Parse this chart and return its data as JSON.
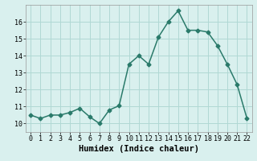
{
  "title": "",
  "xlabel": "Humidex (Indice chaleur)",
  "ylabel": "",
  "x": [
    0,
    1,
    2,
    3,
    4,
    5,
    6,
    7,
    8,
    9,
    10,
    11,
    12,
    13,
    14,
    15,
    16,
    17,
    18,
    19,
    20,
    21,
    22
  ],
  "y": [
    10.5,
    10.3,
    10.5,
    10.5,
    10.65,
    10.9,
    10.4,
    10.0,
    10.8,
    11.05,
    13.5,
    14.0,
    13.5,
    15.1,
    16.0,
    16.65,
    15.5,
    15.5,
    15.4,
    14.6,
    13.5,
    12.3,
    10.3
  ],
  "line_color": "#2a7a6a",
  "marker": "D",
  "marker_size": 2.5,
  "line_width": 1.1,
  "bg_color": "#d9f0ee",
  "grid_color": "#b0d8d4",
  "ylim": [
    9.5,
    17.0
  ],
  "yticks": [
    10,
    11,
    12,
    13,
    14,
    15,
    16
  ],
  "xlim": [
    -0.5,
    22.5
  ],
  "xticks": [
    0,
    1,
    2,
    3,
    4,
    5,
    6,
    7,
    8,
    9,
    10,
    11,
    12,
    13,
    14,
    15,
    16,
    17,
    18,
    19,
    20,
    21,
    22
  ],
  "tick_fontsize": 6,
  "xlabel_fontsize": 7.5
}
